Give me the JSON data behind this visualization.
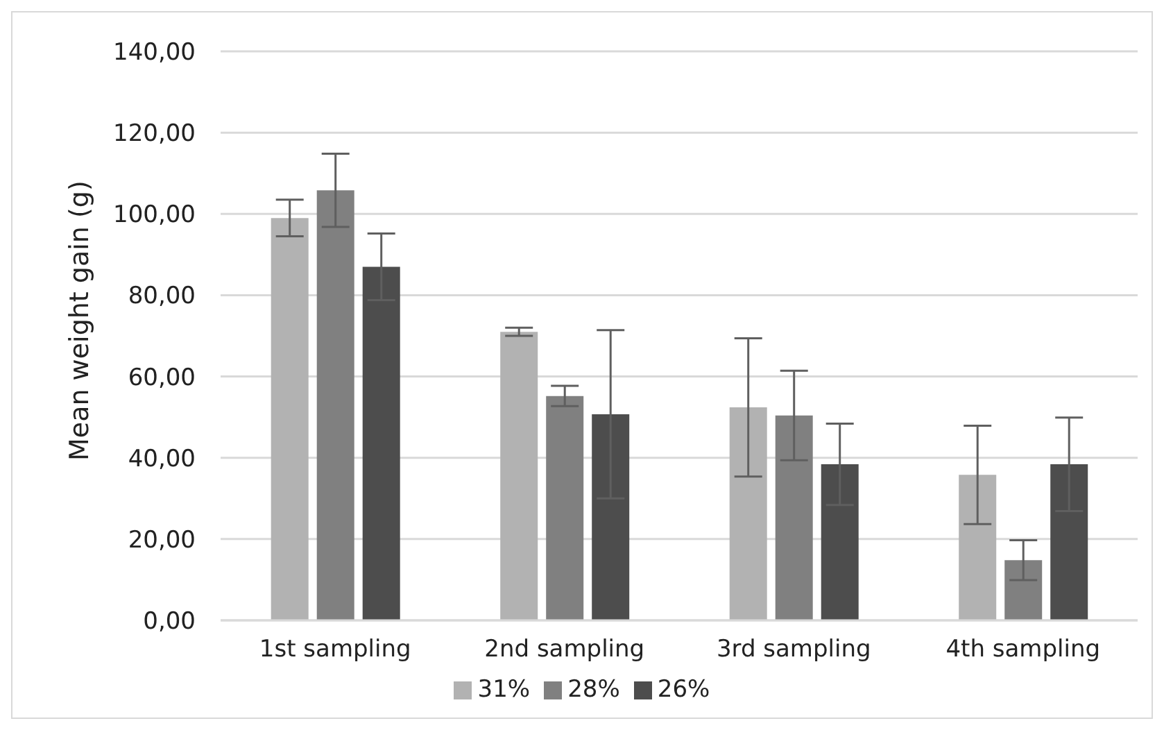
{
  "chart_data": {
    "type": "bar",
    "ylabel": "Mean weight gain (g)",
    "categories": [
      "1st sampling",
      "2nd sampling",
      "3rd sampling",
      "4th sampling"
    ],
    "series": [
      {
        "name": "31%",
        "color": "#b2b2b2",
        "values": [
          99.0,
          71.0,
          52.4,
          35.8
        ],
        "errors": [
          4.5,
          1.0,
          17.0,
          12.1
        ]
      },
      {
        "name": "28%",
        "color": "#808080",
        "values": [
          105.8,
          55.2,
          50.4,
          14.8
        ],
        "errors": [
          9.0,
          2.5,
          11.0,
          4.9
        ]
      },
      {
        "name": "26%",
        "color": "#4d4d4d",
        "values": [
          87.0,
          50.7,
          38.4,
          38.4
        ],
        "errors": [
          8.2,
          20.7,
          10.0,
          11.5
        ]
      }
    ],
    "ylim": [
      0,
      140
    ],
    "yticks": [
      {
        "value": 0,
        "label": "0,00"
      },
      {
        "value": 20,
        "label": "20,00"
      },
      {
        "value": 40,
        "label": "40,00"
      },
      {
        "value": 60,
        "label": "60,00"
      },
      {
        "value": 80,
        "label": "80,00"
      },
      {
        "value": 100,
        "label": "100,00"
      },
      {
        "value": 120,
        "label": "120,00"
      },
      {
        "value": 140,
        "label": "140,00"
      }
    ],
    "grid": "y",
    "legend": "bottom"
  }
}
